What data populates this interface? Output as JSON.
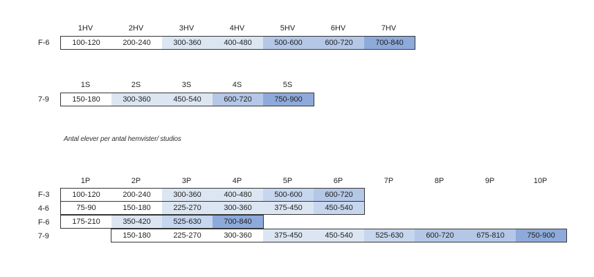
{
  "table_1": {
    "headers": [
      "1HV",
      "2HV",
      "3HV",
      "4HV",
      "5HV",
      "6HV",
      "7HV"
    ],
    "rows": [
      {
        "label": "F-6",
        "cells": [
          "100-120",
          "200-240",
          "300-360",
          "400-480",
          "500-600",
          "600-720",
          "700-840"
        ]
      }
    ]
  },
  "table_2": {
    "headers": [
      "1S",
      "2S",
      "3S",
      "4S",
      "5S"
    ],
    "rows": [
      {
        "label": "7-9",
        "cells": [
          "150-180",
          "300-360",
          "450-540",
          "600-720",
          "750-900"
        ]
      }
    ]
  },
  "caption": "Antal elever per antal hemvister/ studios",
  "table_3": {
    "headers": [
      "1P",
      "2P",
      "3P",
      "4P",
      "5P",
      "6P",
      "7P",
      "8P",
      "9P",
      "10P"
    ],
    "rows": [
      {
        "label": "F-3",
        "cells": [
          "100-120",
          "200-240",
          "300-360",
          "400-480",
          "500-600",
          "600-720"
        ]
      },
      {
        "label": "4-6",
        "cells": [
          "75-90",
          "150-180",
          "225-270",
          "300-360",
          "375-450",
          "450-540"
        ]
      },
      {
        "label": "F-6",
        "cells": [
          "175-210",
          "350-420",
          "525-630",
          "700-840"
        ]
      },
      {
        "label": "7-9",
        "cells": [
          null,
          "150-180",
          "225-270",
          "300-360",
          "375-450",
          "450-540",
          "525-630",
          "600-720",
          "675-810",
          "750-900"
        ]
      }
    ]
  }
}
